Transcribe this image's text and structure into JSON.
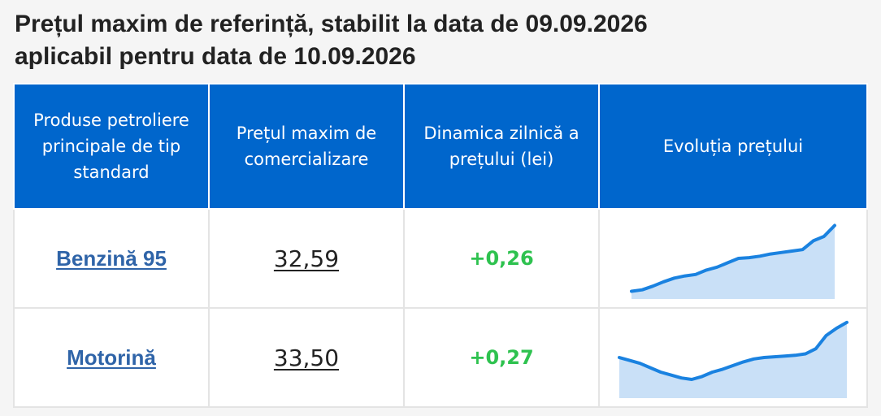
{
  "title_line1": "Prețul maxim de referință, stabilit la data de 09.09.2026",
  "title_line2": "aplicabil pentru data de 10.09.2026",
  "table": {
    "headers": [
      "Produse petroliere principale de tip standard",
      "Prețul maxim de comercializare",
      "Dinamica zilnică a prețului (lei)",
      "Evoluția prețului"
    ],
    "rows": [
      {
        "product": "Benzină 95",
        "price": "32,59",
        "delta": "+0,26",
        "trend": [
          0.05,
          0.07,
          0.12,
          0.18,
          0.23,
          0.26,
          0.28,
          0.34,
          0.38,
          0.44,
          0.5,
          0.51,
          0.53,
          0.56,
          0.58,
          0.6,
          0.62,
          0.74,
          0.8,
          0.95
        ]
      },
      {
        "product": "Motorină",
        "price": "33,50",
        "delta": "+0,27",
        "trend": [
          0.5,
          0.46,
          0.42,
          0.36,
          0.3,
          0.26,
          0.22,
          0.2,
          0.24,
          0.3,
          0.34,
          0.39,
          0.44,
          0.48,
          0.5,
          0.51,
          0.52,
          0.53,
          0.55,
          0.62,
          0.8,
          0.9,
          0.98
        ]
      }
    ]
  },
  "colors": {
    "header_bg": "#0066cc",
    "link": "#2f64a8",
    "positive": "#2ec24f",
    "spark_line": "#1a82e0",
    "spark_fill": "#c9e0f7"
  }
}
